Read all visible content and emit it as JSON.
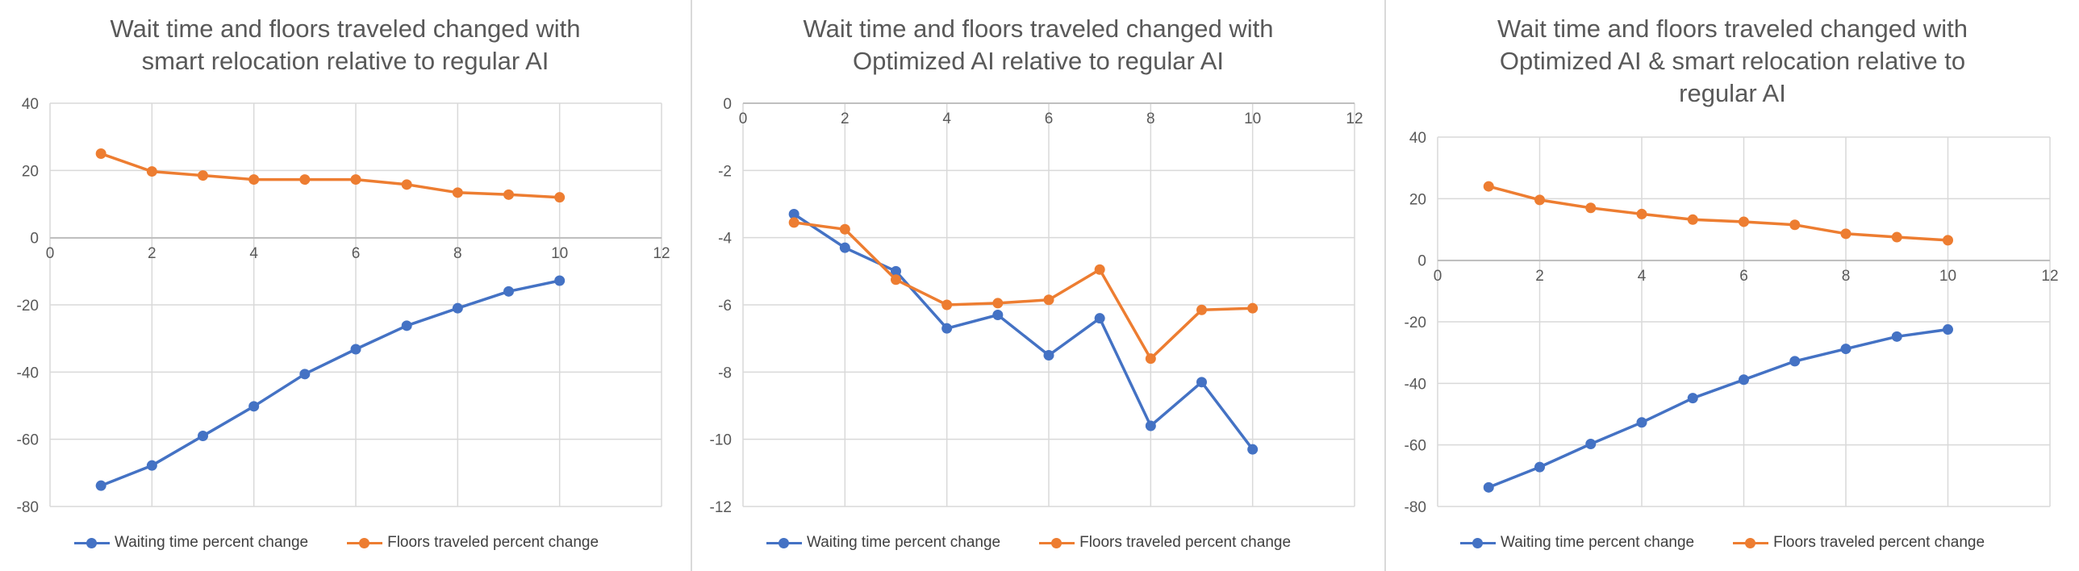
{
  "colors": {
    "waiting": "#4472c4",
    "floors": "#ed7d31",
    "grid": "#d9d9d9",
    "text": "#595959"
  },
  "chart_data": [
    {
      "type": "line",
      "title": "Wait time and floors traveled changed with\nsmart relocation relative to regular AI",
      "xlim": [
        0,
        12
      ],
      "xticks": [
        0,
        2,
        4,
        6,
        8,
        10,
        12
      ],
      "ylim": [
        -80,
        40
      ],
      "yticks": [
        40,
        20,
        0,
        -20,
        -40,
        -60,
        -80
      ],
      "grid": true,
      "legend": "bottom",
      "series": [
        {
          "name": "Waiting time percent change",
          "x": [
            1,
            2,
            3,
            4,
            5,
            6,
            7,
            8,
            9,
            10
          ],
          "values": [
            -73.8,
            -67.8,
            -59.0,
            -50.2,
            -40.6,
            -33.2,
            -26.2,
            -21.0,
            -16.0,
            -12.8
          ]
        },
        {
          "name": "Floors traveled percent change",
          "x": [
            1,
            2,
            3,
            4,
            5,
            6,
            7,
            8,
            9,
            10
          ],
          "values": [
            25.0,
            19.7,
            18.5,
            17.3,
            17.3,
            17.3,
            15.8,
            13.4,
            12.8,
            12.0
          ]
        }
      ]
    },
    {
      "type": "line",
      "title": "Wait time and floors traveled changed with\nOptimized AI relative to regular AI",
      "xlim": [
        0,
        12
      ],
      "xticks": [
        0,
        2,
        4,
        6,
        8,
        10,
        12
      ],
      "ylim": [
        -12,
        0
      ],
      "yticks": [
        0,
        -2,
        -4,
        -6,
        -8,
        -10,
        -12
      ],
      "grid": true,
      "legend": "bottom",
      "series": [
        {
          "name": "Waiting time percent change",
          "x": [
            1,
            2,
            3,
            4,
            5,
            6,
            7,
            8,
            9,
            10
          ],
          "values": [
            -3.3,
            -4.3,
            -5.0,
            -6.7,
            -6.3,
            -7.5,
            -6.4,
            -9.6,
            -8.3,
            -10.3
          ]
        },
        {
          "name": "Floors traveled percent change",
          "x": [
            1,
            2,
            3,
            4,
            5,
            6,
            7,
            8,
            9,
            10
          ],
          "values": [
            -3.55,
            -3.75,
            -5.25,
            -6.0,
            -5.95,
            -5.85,
            -4.95,
            -7.6,
            -6.15,
            -6.1
          ]
        }
      ]
    },
    {
      "type": "line",
      "title": "Wait time and floors traveled changed with\nOptimized AI & smart relocation relative to\nregular AI",
      "xlim": [
        0,
        12
      ],
      "xticks": [
        0,
        2,
        4,
        6,
        8,
        10,
        12
      ],
      "ylim": [
        -80,
        40
      ],
      "yticks": [
        40,
        20,
        0,
        -20,
        -40,
        -60,
        -80
      ],
      "grid": true,
      "legend": "bottom",
      "series": [
        {
          "name": "Waiting time percent change",
          "x": [
            1,
            2,
            3,
            4,
            5,
            6,
            7,
            8,
            9,
            10
          ],
          "values": [
            -73.8,
            -67.2,
            -59.7,
            -52.7,
            -44.8,
            -38.8,
            -32.8,
            -28.8,
            -24.8,
            -22.5
          ]
        },
        {
          "name": "Floors traveled percent change",
          "x": [
            1,
            2,
            3,
            4,
            5,
            6,
            7,
            8,
            9,
            10
          ],
          "values": [
            24.0,
            19.6,
            17.0,
            15.0,
            13.2,
            12.5,
            11.5,
            8.6,
            7.5,
            6.5
          ]
        }
      ]
    }
  ]
}
